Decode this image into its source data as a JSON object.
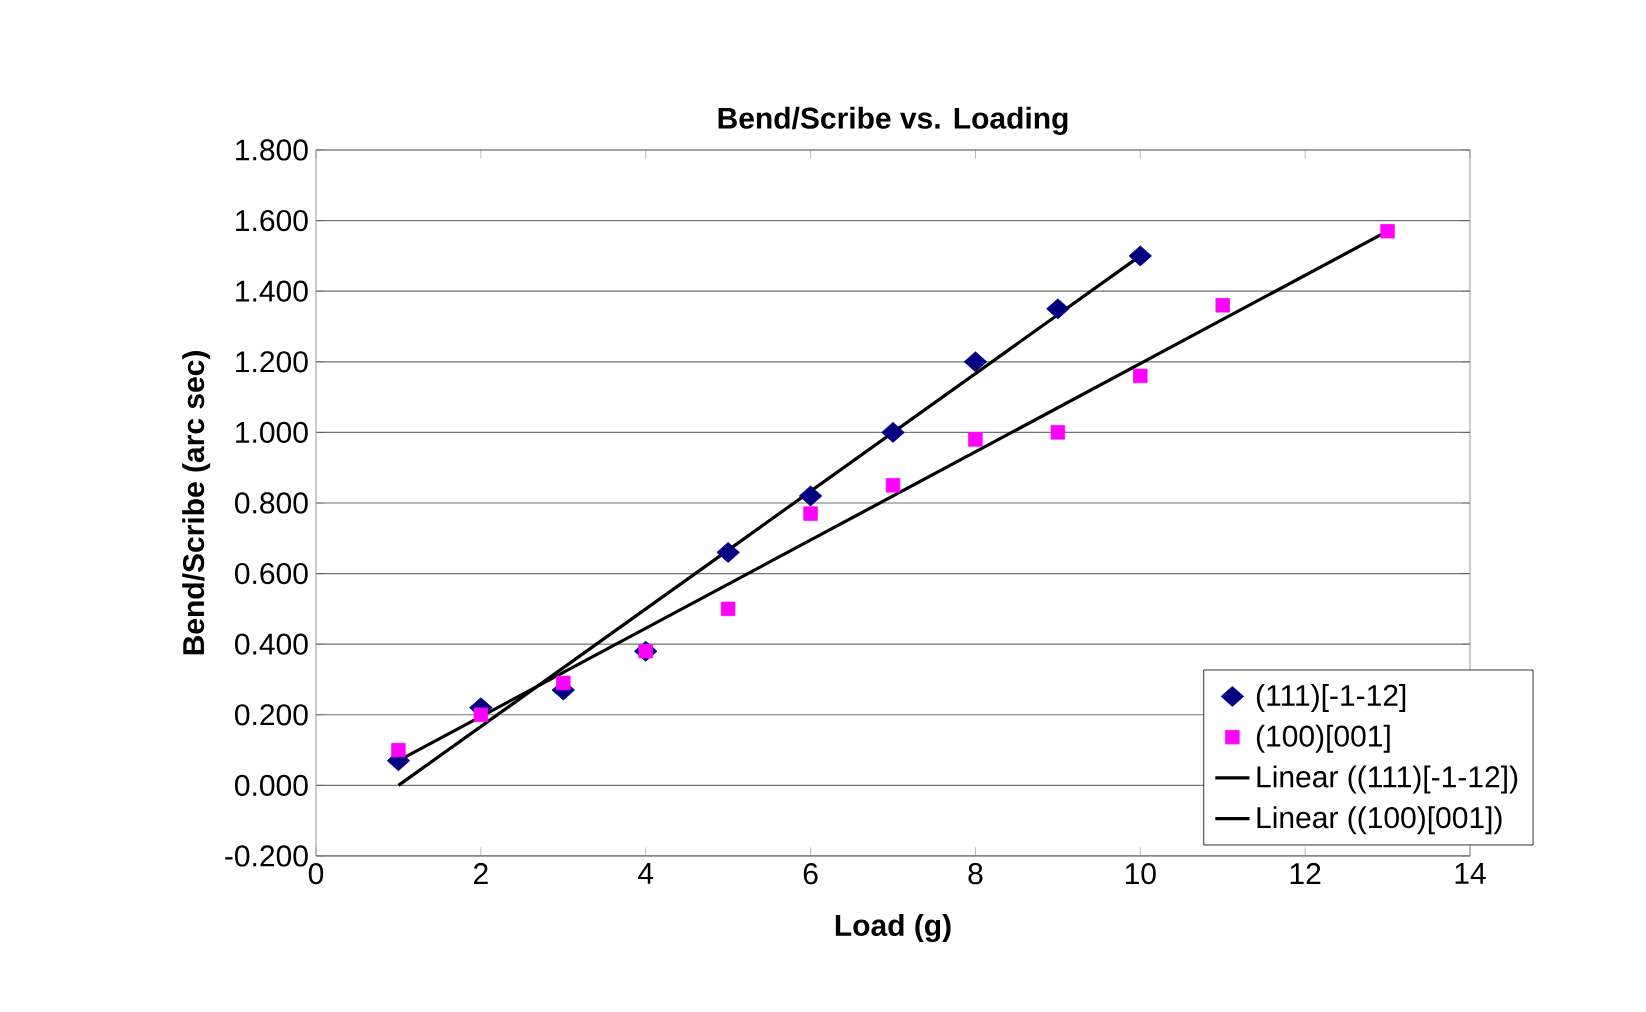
{
  "chart_data": {
    "type": "scatter",
    "title": "Bend/Scribe vs. Loading",
    "xlabel": "Load (g)",
    "ylabel": "Bend/Scribe (arc sec)",
    "xlim": [
      0,
      14
    ],
    "xticks": [
      0,
      2,
      4,
      6,
      8,
      10,
      12,
      14
    ],
    "ylim": [
      -0.2,
      1.8
    ],
    "yticks": [
      {
        "value": -0.2,
        "label": "-0.200"
      },
      {
        "value": 0,
        "label": "0.000"
      },
      {
        "value": 0.2,
        "label": "0.200"
      },
      {
        "value": 0.4,
        "label": "0.400"
      },
      {
        "value": 0.6,
        "label": "0.600"
      },
      {
        "value": 0.8,
        "label": "0.800"
      },
      {
        "value": 1.0,
        "label": "1.000"
      },
      {
        "value": 1.2,
        "label": "1.200"
      },
      {
        "value": 1.4,
        "label": "1.400"
      },
      {
        "value": 1.6,
        "label": "1.600"
      },
      {
        "value": 1.8,
        "label": "1.800"
      }
    ],
    "grid": "y",
    "legend": "bottom right",
    "series": [
      {
        "name": "(111)[-1-12]",
        "marker": "diamond",
        "color": "#000080",
        "x": [
          1,
          2,
          3,
          4,
          5,
          6,
          7,
          8,
          9,
          10
        ],
        "values": [
          0.07,
          0.22,
          0.27,
          0.38,
          0.66,
          0.82,
          1.0,
          1.2,
          1.35,
          1.5
        ]
      },
      {
        "name": "(100)[001]",
        "marker": "square",
        "color": "#ff00ff",
        "x": [
          1,
          2,
          3,
          4,
          5,
          6,
          7,
          8,
          9,
          10,
          11,
          13
        ],
        "values": [
          0.1,
          0.2,
          0.29,
          0.38,
          0.5,
          0.77,
          0.85,
          0.98,
          1.0,
          1.16,
          1.36,
          1.57
        ]
      },
      {
        "name": "Linear ((111)[-1-12])",
        "type": "line",
        "marker": "none",
        "color": "#000000",
        "x": [
          1,
          10
        ],
        "values": [
          0.0,
          1.5
        ]
      },
      {
        "name": "Linear ((100)[001])",
        "type": "line",
        "marker": "none",
        "color": "#000000",
        "x": [
          1,
          13
        ],
        "values": [
          0.07,
          1.57
        ]
      }
    ]
  }
}
